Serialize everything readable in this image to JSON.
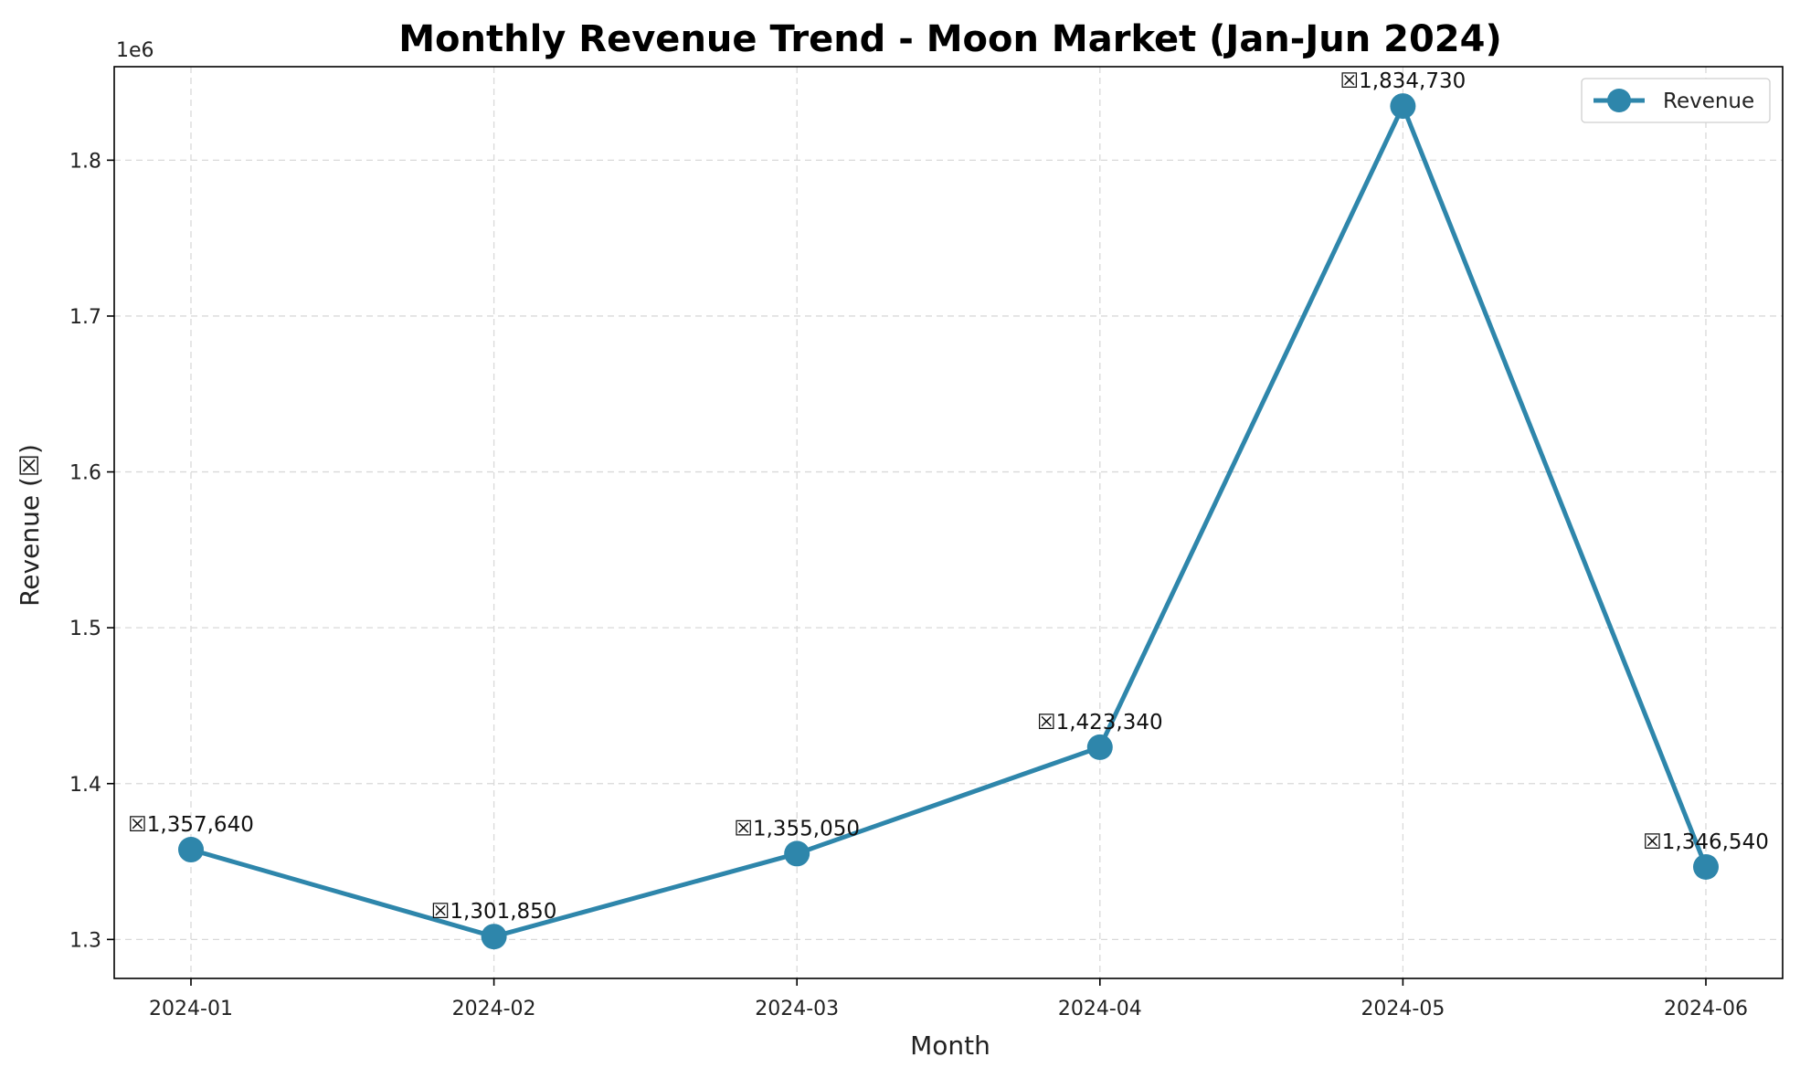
{
  "chart_data": {
    "type": "line",
    "title": "Monthly Revenue Trend - Moon Market (Jan-Jun 2024)",
    "xlabel": "Month",
    "ylabel": "Revenue (☒)",
    "y_multiplier_label": "1e6",
    "categories": [
      "2024-01",
      "2024-02",
      "2024-03",
      "2024-04",
      "2024-05",
      "2024-06"
    ],
    "series": [
      {
        "name": "Revenue",
        "color": "#2e86ab",
        "values": [
          1357640,
          1301850,
          1355050,
          1423340,
          1834730,
          1346540
        ],
        "labels": [
          "☒1,357,640",
          "☒1,301,850",
          "☒1,355,050",
          "☒1,423,340",
          "☒1,834,730",
          "☒1,346,540"
        ]
      }
    ],
    "ylim": [
      1275000,
      1860000
    ],
    "yticks": [
      1300000,
      1400000,
      1500000,
      1600000,
      1700000,
      1800000
    ],
    "ytick_labels": [
      "1.3",
      "1.4",
      "1.5",
      "1.6",
      "1.7",
      "1.8"
    ],
    "grid": true,
    "legend_position": "top-right"
  }
}
